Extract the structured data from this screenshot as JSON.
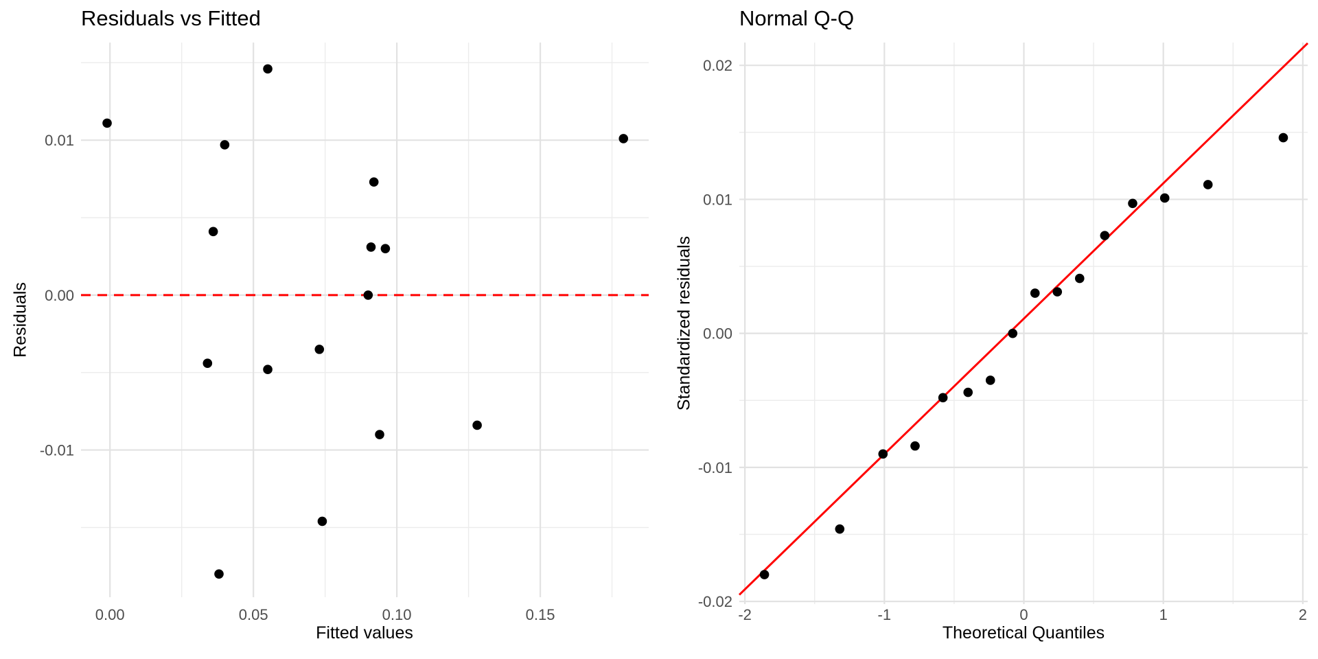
{
  "figure": {
    "background": "#FFFFFF",
    "point_color": "#000000",
    "grid_major_color": "#E2E2E2",
    "grid_minor_color": "#ECECEC",
    "tick_label_color": "#4D4D4D",
    "text_color": "#000000",
    "reference_line_color": "#FF0000"
  },
  "chart_data": [
    {
      "type": "scatter",
      "title": "Residuals vs Fitted",
      "xlabel": "Fitted values",
      "ylabel": "Residuals",
      "xlim": [
        -0.0101,
        0.1878
      ],
      "ylim": [
        -0.0195,
        0.0163
      ],
      "grid": true,
      "legend": "none",
      "x_ticks": {
        "major": [
          0,
          0.05,
          0.1,
          0.15
        ],
        "labels": [
          "0.00",
          "0.05",
          "0.10",
          "0.15"
        ],
        "minor": [
          0.025,
          0.075,
          0.125,
          0.175
        ]
      },
      "y_ticks": {
        "major": [
          0.01,
          0,
          -0.01
        ],
        "labels": [
          "0.01",
          "0.00",
          "-0.01"
        ],
        "minor": [
          0.015,
          0.005,
          -0.005,
          -0.015
        ]
      },
      "reference_line": {
        "type": "horizontal-dashed",
        "y": 0
      },
      "points": [
        {
          "x": -0.001,
          "y": 0.0111
        },
        {
          "x": 0.055,
          "y": 0.0146
        },
        {
          "x": 0.04,
          "y": 0.0097
        },
        {
          "x": 0.092,
          "y": 0.0073
        },
        {
          "x": 0.036,
          "y": 0.0041
        },
        {
          "x": 0.091,
          "y": 0.0031
        },
        {
          "x": 0.096,
          "y": 0.003
        },
        {
          "x": 0.09,
          "y": 0.0
        },
        {
          "x": 0.034,
          "y": -0.0044
        },
        {
          "x": 0.055,
          "y": -0.0048
        },
        {
          "x": 0.073,
          "y": -0.0035
        },
        {
          "x": 0.094,
          "y": -0.009
        },
        {
          "x": 0.128,
          "y": -0.0084
        },
        {
          "x": 0.074,
          "y": -0.0146
        },
        {
          "x": 0.038,
          "y": -0.018
        },
        {
          "x": 0.179,
          "y": 0.0101
        }
      ]
    },
    {
      "type": "scatter",
      "title": "Normal Q-Q",
      "xlabel": "Theoretical Quantiles",
      "ylabel": "Standardized residuals",
      "xlim": [
        -2.04,
        2.035
      ],
      "ylim": [
        -0.0202,
        0.0217
      ],
      "grid": true,
      "legend": "none",
      "x_ticks": {
        "major": [
          -2,
          -1,
          0,
          1,
          2
        ],
        "labels": [
          "-2",
          "-1",
          "0",
          "1",
          "2"
        ],
        "minor": [
          -1.5,
          -0.5,
          0.5,
          1.5
        ]
      },
      "y_ticks": {
        "major": [
          0.02,
          0.01,
          0,
          -0.01,
          -0.02
        ],
        "labels": [
          "0.02",
          "0.01",
          "0.00",
          "-0.01",
          "-0.02"
        ],
        "minor": [
          0.015,
          0.005,
          -0.005,
          -0.015
        ]
      },
      "qq_line": {
        "slope": 0.0101,
        "intercept": 0.0011
      },
      "points": [
        {
          "x": -1.86,
          "y": -0.018
        },
        {
          "x": -1.32,
          "y": -0.0146
        },
        {
          "x": -1.01,
          "y": -0.009
        },
        {
          "x": -0.78,
          "y": -0.0084
        },
        {
          "x": -0.58,
          "y": -0.0048
        },
        {
          "x": -0.4,
          "y": -0.0044
        },
        {
          "x": -0.24,
          "y": -0.0035
        },
        {
          "x": -0.08,
          "y": 0.0
        },
        {
          "x": 0.08,
          "y": 0.003
        },
        {
          "x": 0.24,
          "y": 0.0031
        },
        {
          "x": 0.4,
          "y": 0.0041
        },
        {
          "x": 0.58,
          "y": 0.0073
        },
        {
          "x": 0.78,
          "y": 0.0097
        },
        {
          "x": 1.01,
          "y": 0.0101
        },
        {
          "x": 1.32,
          "y": 0.0111
        },
        {
          "x": 1.86,
          "y": 0.0146
        }
      ]
    }
  ]
}
